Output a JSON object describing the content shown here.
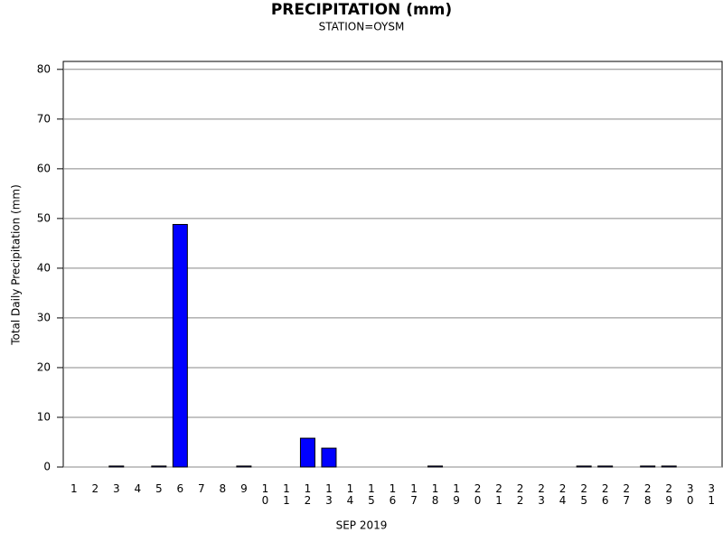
{
  "chart_data": {
    "type": "bar",
    "title": "PRECIPITATION (mm)",
    "subtitle": "STATION=OYSM",
    "x_label": "SEP 2019",
    "y_label": "Total Daily Precipitation (mm)",
    "categories": [
      "1",
      "2",
      "3",
      "4",
      "5",
      "6",
      "7",
      "8",
      "9",
      "10",
      "11",
      "12",
      "13",
      "14",
      "15",
      "16",
      "17",
      "18",
      "19",
      "20",
      "21",
      "22",
      "23",
      "24",
      "25",
      "26",
      "27",
      "28",
      "29",
      "30",
      "31"
    ],
    "values": [
      0,
      0,
      0.2,
      0,
      0.2,
      48.8,
      0,
      0,
      0.2,
      0,
      0,
      5.8,
      3.8,
      0,
      0,
      0,
      0,
      0.2,
      0,
      0,
      0,
      0,
      0,
      0,
      0.2,
      0.2,
      0,
      0.2,
      0.2,
      0,
      0
    ],
    "color": "#0000ff",
    "ylim": [
      0,
      81.6
    ],
    "yticks": [
      0,
      10,
      20,
      30,
      40,
      50,
      60,
      70,
      80
    ],
    "grid": true
  }
}
